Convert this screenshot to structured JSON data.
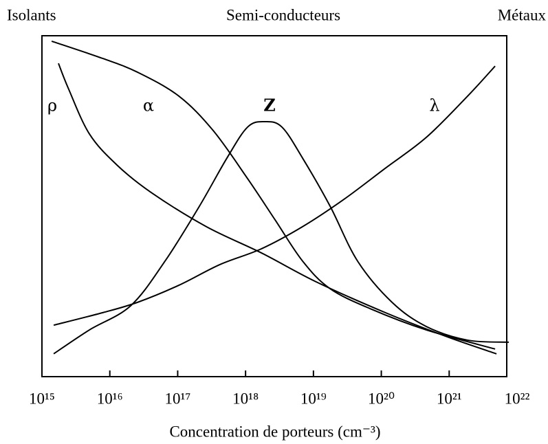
{
  "chart_data": {
    "type": "line",
    "x_label": "Concentration de porteurs (cm⁻³)",
    "annotations": [
      "Isolants",
      "Semi-conducteurs",
      "Métaux"
    ],
    "xscale": "log",
    "xlim": [
      1000000000000000.0,
      1e+22
    ],
    "xticks": [
      {
        "value": 1000000000000000.0,
        "label": "10¹⁵"
      },
      {
        "value": 1e+16,
        "label": "10¹⁶"
      },
      {
        "value": 1e+17,
        "label": "10¹⁷"
      },
      {
        "value": 1e+18,
        "label": "10¹⁸"
      },
      {
        "value": 1e+19,
        "label": "10¹⁹"
      },
      {
        "value": 1e+20,
        "label": "10²⁰"
      },
      {
        "value": 1e+21,
        "label": "10²¹"
      },
      {
        "value": 1e+22,
        "label": "10²²"
      }
    ],
    "ylim": [
      0,
      100
    ],
    "color": "#000000",
    "series": [
      {
        "name": "ρ",
        "x": [
          1750000000000000.0,
          2480000000000000.0,
          5000000000000000.0,
          1.27e+16,
          4.08e+16,
          2.64e+17,
          1.71e+18,
          1.1e+19,
          1.14e+20,
          9.29e+20,
          4.98e+21
        ],
        "values": [
          91.9,
          84.3,
          71.2,
          62.1,
          54.0,
          44.0,
          36.3,
          27.8,
          18.8,
          11.7,
          6.7
        ]
      },
      {
        "name": "α",
        "x": [
          1390000000000000.0,
          7970000000000000.0,
          2.56e+16,
          1.04e+17,
          3.33e+17,
          1.07e+18,
          2.72e+18,
          6.92e+18,
          1.76e+19,
          7.13e+19,
          4.61e+20,
          4.75e+21
        ],
        "values": [
          98.4,
          93.3,
          89.3,
          82.3,
          72.2,
          58.1,
          46.0,
          33.9,
          25.8,
          19.8,
          13.7,
          8.1
        ]
      },
      {
        "name": "Z",
        "x": [
          1490000000000000.0,
          5000000000000000.0,
          2.03e+16,
          6.51e+16,
          2.09e+17,
          5.31e+17,
          1.07e+18,
          1.92e+18,
          3.44e+18,
          6.92e+18,
          1.76e+19,
          4.47e+19,
          1.44e+20,
          4.61e+20,
          1.87e+21,
          7.57e+21
        ],
        "values": [
          6.7,
          13.7,
          20.8,
          33.9,
          50.0,
          64.1,
          73.2,
          74.8,
          73.2,
          64.1,
          50.0,
          33.9,
          21.8,
          14.7,
          10.7,
          10.1
        ]
      },
      {
        "name": "λ",
        "x": [
          1490000000000000.0,
          7970000000000000.0,
          2.56e+16,
          1.04e+17,
          4.21e+17,
          1.71e+18,
          6.92e+18,
          2.81e+19,
          1.14e+20,
          4.61e+20,
          1.87e+21,
          4.75e+21
        ],
        "values": [
          15.1,
          18.8,
          21.8,
          26.8,
          32.9,
          37.5,
          44.0,
          52.0,
          61.1,
          70.2,
          82.3,
          91.1
        ]
      }
    ]
  }
}
